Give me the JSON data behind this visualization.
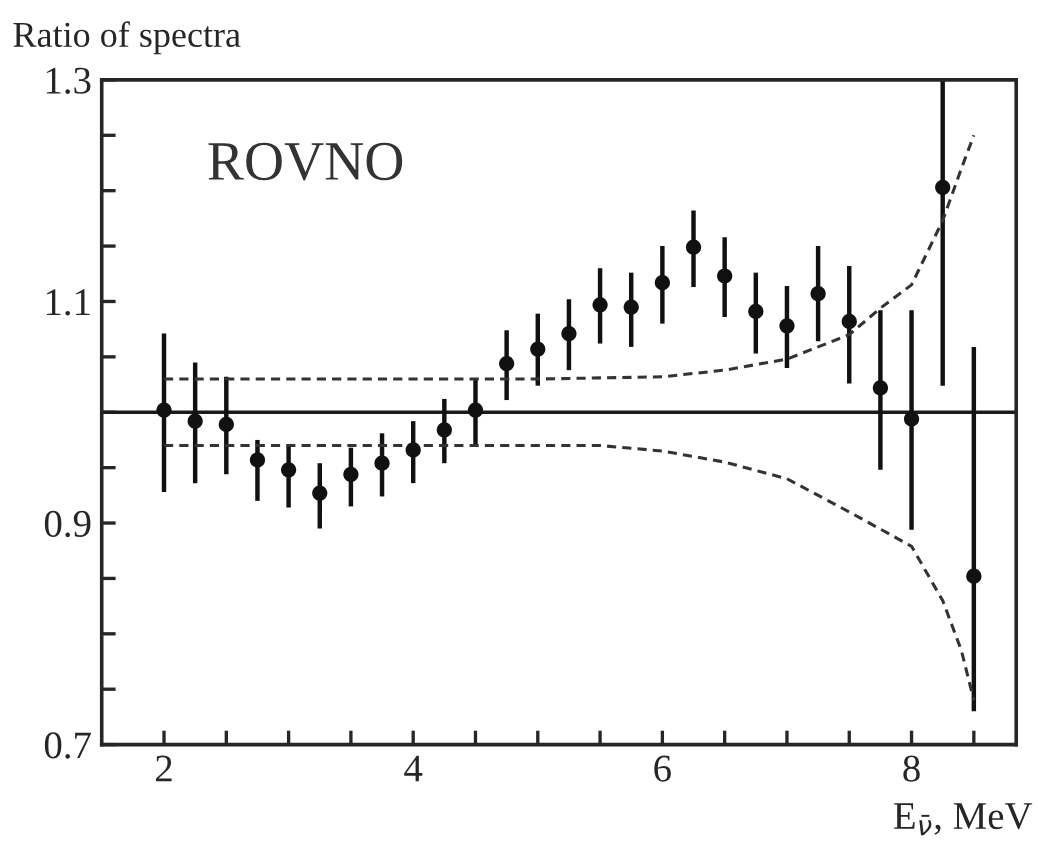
{
  "chart_data": {
    "type": "scatter",
    "ylabel": "Ratio of spectra",
    "xlabel": "E$_{ν̄}$, MeV",
    "annotations": [
      "ROVNO"
    ],
    "xlim": [
      1.5,
      8.84
    ],
    "ylim": [
      0.7,
      1.3
    ],
    "xticks": [
      2,
      {
        "value": 2.5,
        "label": null
      },
      {
        "value": 3,
        "label": null
      },
      {
        "value": 3.5,
        "label": null
      },
      4,
      {
        "value": 4.5,
        "label": null
      },
      {
        "value": 5,
        "label": null
      },
      {
        "value": 5.5,
        "label": null
      },
      6,
      {
        "value": 6.5,
        "label": null
      },
      {
        "value": 7,
        "label": null
      },
      {
        "value": 7.5,
        "label": null
      },
      8,
      {
        "value": 8.5,
        "label": null
      }
    ],
    "yticks": [
      0.7,
      {
        "value": 0.75,
        "label": null
      },
      {
        "value": 0.8,
        "label": null
      },
      {
        "value": 0.85,
        "label": null
      },
      0.9,
      {
        "value": 0.95,
        "label": null
      },
      {
        "value": 1.0,
        "label": null
      },
      {
        "value": 1.05,
        "label": null
      },
      1.1,
      {
        "value": 1.15,
        "label": null
      },
      {
        "value": 1.2,
        "label": null
      },
      {
        "value": 1.25,
        "label": null
      },
      1.3
    ],
    "grid": false,
    "legend": false,
    "ref_lines": [
      {
        "axis": "y",
        "value": 1.0,
        "color": "#1a1a1a",
        "line_style": "solid"
      }
    ],
    "series": [
      {
        "color": "#111111",
        "marker": "circle",
        "x": [
          2.0,
          2.25,
          2.5,
          2.75,
          3.0,
          3.25,
          3.5,
          3.75,
          4.0,
          4.25,
          4.5,
          4.75,
          5.0,
          5.25,
          5.5,
          5.75,
          6.0,
          6.25,
          6.5,
          6.75,
          7.0,
          7.25,
          7.5,
          7.75,
          8.0,
          8.25,
          8.5
        ],
        "values": [
          1.002,
          0.992,
          0.989,
          0.957,
          0.948,
          0.927,
          0.944,
          0.954,
          0.966,
          0.984,
          1.002,
          1.044,
          1.057,
          1.071,
          1.097,
          1.095,
          1.117,
          1.149,
          1.123,
          1.091,
          1.078,
          1.107,
          1.082,
          1.022,
          0.994,
          1.203,
          0.852
        ],
        "errors": [
          [
            0.928,
            1.071
          ],
          [
            0.936,
            1.045
          ],
          [
            0.944,
            1.032
          ],
          [
            0.92,
            0.975
          ],
          [
            0.914,
            0.97
          ],
          [
            0.895,
            0.954
          ],
          [
            0.915,
            0.968
          ],
          [
            0.924,
            0.981
          ],
          [
            0.936,
            0.992
          ],
          [
            0.954,
            1.012
          ],
          [
            0.97,
            1.03
          ],
          [
            1.011,
            1.074
          ],
          [
            1.024,
            1.089
          ],
          [
            1.038,
            1.102
          ],
          [
            1.062,
            1.13
          ],
          [
            1.059,
            1.126
          ],
          [
            1.08,
            1.15
          ],
          [
            1.113,
            1.182
          ],
          [
            1.086,
            1.158
          ],
          [
            1.053,
            1.126
          ],
          [
            1.04,
            1.114
          ],
          [
            1.064,
            1.15
          ],
          [
            1.026,
            1.132
          ],
          [
            0.948,
            1.092
          ],
          [
            0.894,
            1.092
          ],
          [
            1.024,
            1.3
          ],
          [
            0.73,
            1.059
          ]
        ]
      },
      {
        "type": "line",
        "color": "#333333",
        "line_style": "dashed",
        "marker": "none",
        "x": [
          2.0,
          5.0,
          6.0,
          6.5,
          7.0,
          7.5,
          7.75,
          8.0,
          8.25,
          8.4,
          8.5
        ],
        "values": [
          1.03,
          1.03,
          1.032,
          1.038,
          1.048,
          1.07,
          1.094,
          1.115,
          1.173,
          1.22,
          1.25
        ]
      },
      {
        "type": "line",
        "color": "#333333",
        "line_style": "dashed",
        "marker": "none",
        "x": [
          2.0,
          5.5,
          6.0,
          6.5,
          7.0,
          7.5,
          8.0,
          8.25,
          8.4,
          8.5
        ],
        "values": [
          0.97,
          0.97,
          0.965,
          0.955,
          0.94,
          0.91,
          0.879,
          0.83,
          0.785,
          0.74
        ]
      }
    ]
  }
}
